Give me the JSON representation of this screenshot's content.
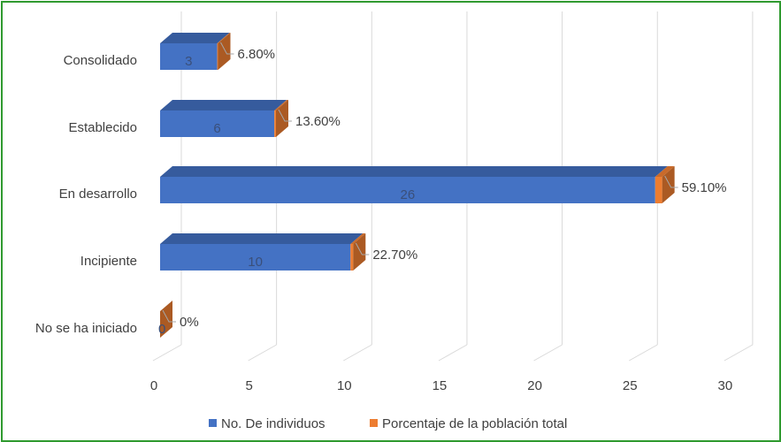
{
  "chart_data": {
    "type": "bar",
    "orientation": "horizontal",
    "style": "3d-stacked",
    "categories": [
      "Consolidado",
      "Establecido",
      "En desarrollo",
      "Incipiente",
      "No se ha iniciado"
    ],
    "series": [
      {
        "name": "No. De individuos",
        "values": [
          3,
          6,
          26,
          10,
          0
        ],
        "labels": [
          "3",
          "6",
          "26",
          "10",
          "0"
        ],
        "color": "#4472c4"
      },
      {
        "name": "Porcentaje de la población total",
        "values": [
          0.068,
          0.136,
          0.591,
          0.227,
          0
        ],
        "labels": [
          "6.80%",
          "13.60%",
          "59.10%",
          "22.70%",
          "0%"
        ],
        "color": "#ed7d31"
      }
    ],
    "xlim": [
      0,
      30
    ],
    "xticks": [
      "0",
      "5",
      "10",
      "15",
      "20",
      "25",
      "30"
    ],
    "grid": true,
    "legend": "bottom",
    "frame_color": "#2f9a2f"
  }
}
